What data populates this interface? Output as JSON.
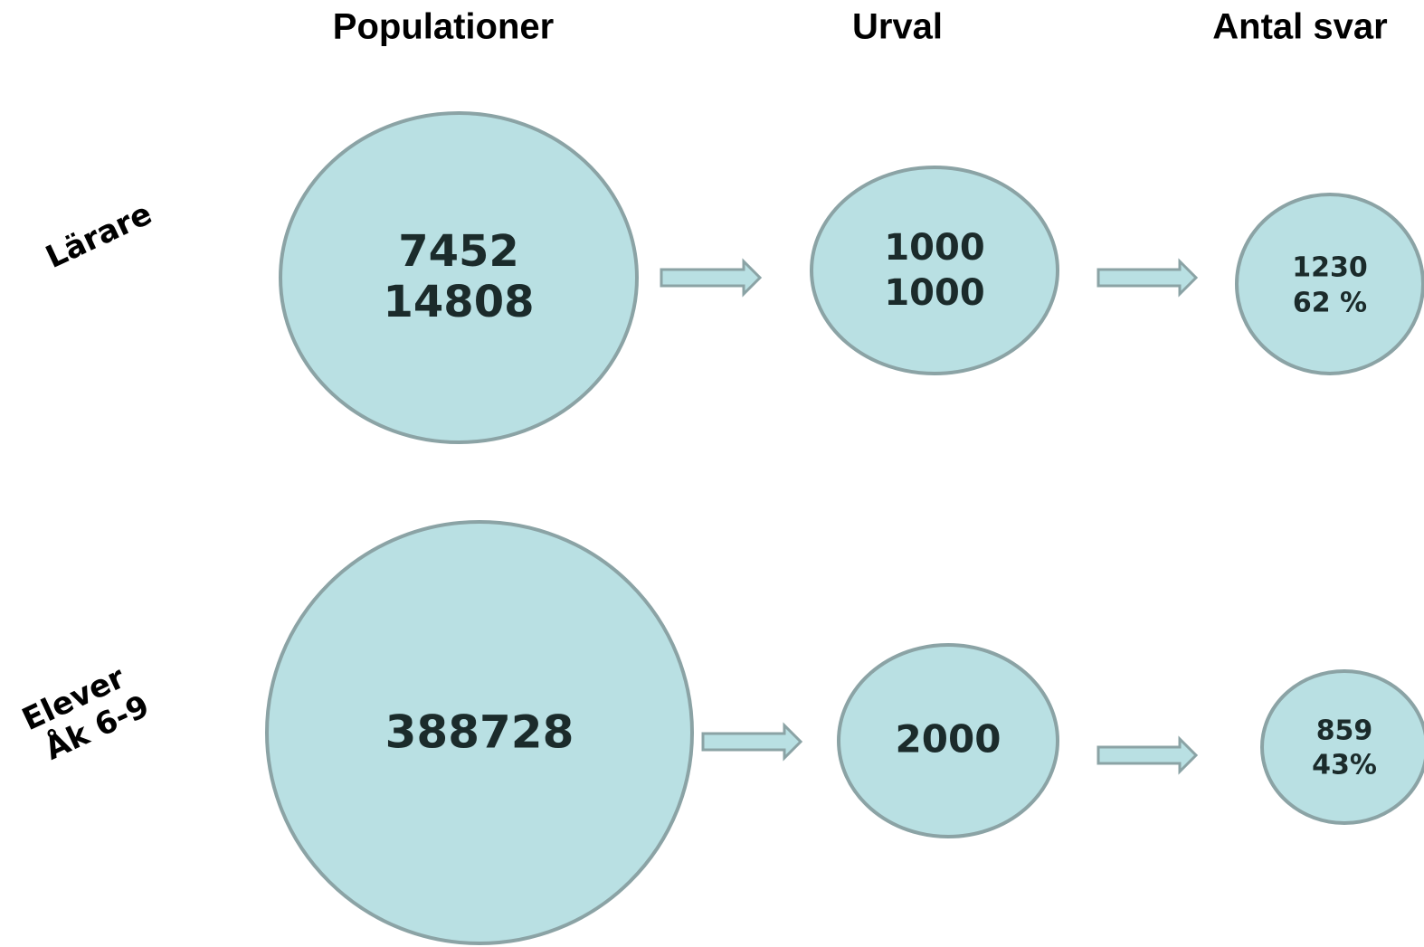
{
  "headers": [
    "Populationer",
    "Urval",
    "Antal svar"
  ],
  "rows": [
    {
      "label": [
        "Lärare"
      ],
      "nodes": [
        [
          "7452",
          "14808"
        ],
        [
          "1000",
          "1000"
        ],
        [
          "1230",
          "62 %"
        ]
      ]
    },
    {
      "label": [
        "Elever",
        "Åk 6-9"
      ],
      "nodes": [
        [
          "388728"
        ],
        [
          "2000"
        ],
        [
          "859",
          "43%"
        ]
      ]
    }
  ]
}
